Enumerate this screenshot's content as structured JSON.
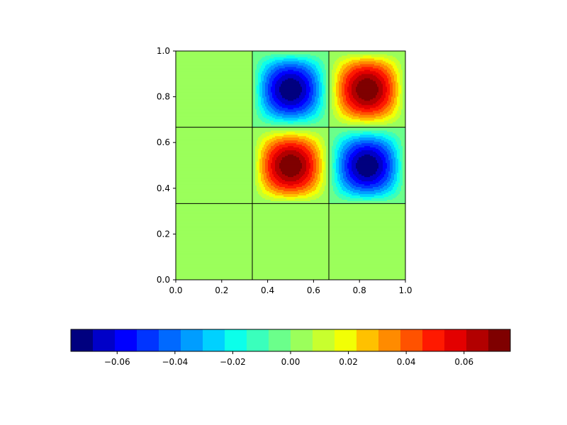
{
  "chart_data": {
    "type": "heatmap",
    "title": "",
    "xlabel": "",
    "ylabel": "",
    "xlim": [
      0.0,
      1.0
    ],
    "ylim": [
      0.0,
      1.0
    ],
    "x_tick_labels": [
      "0.0",
      "0.2",
      "0.4",
      "0.6",
      "0.8",
      "1.0"
    ],
    "y_tick_labels": [
      "0.0",
      "0.2",
      "0.4",
      "0.6",
      "0.8",
      "1.0"
    ],
    "grid_lines": [
      0.3333,
      0.6667
    ],
    "colormap": "jet",
    "contour_levels": 20,
    "value_range": [
      -0.076,
      0.076
    ],
    "cells": [
      {
        "col": 1,
        "row": 2,
        "peak": -0.076
      },
      {
        "col": 2,
        "row": 2,
        "peak": 0.076
      },
      {
        "col": 1,
        "row": 1,
        "peak": 0.076
      },
      {
        "col": 2,
        "row": 1,
        "peak": -0.076
      }
    ],
    "colorbar": {
      "orientation": "horizontal",
      "tick_labels": [
        "−0.06",
        "−0.04",
        "−0.02",
        "0.00",
        "0.02",
        "0.04",
        "0.06"
      ],
      "tick_values": [
        -0.06,
        -0.04,
        -0.02,
        0.0,
        0.02,
        0.04,
        0.06
      ],
      "colors": [
        "#00007f",
        "#0000c8",
        "#0000ff",
        "#0034ff",
        "#0069ff",
        "#009dff",
        "#00d1ff",
        "#0cffea",
        "#3affbc",
        "#6bff8b",
        "#9bff5b",
        "#c8ff2e",
        "#f2ff05",
        "#ffc100",
        "#ff8b00",
        "#ff5200",
        "#ff1900",
        "#e30000",
        "#b20000",
        "#7f0000"
      ]
    }
  }
}
